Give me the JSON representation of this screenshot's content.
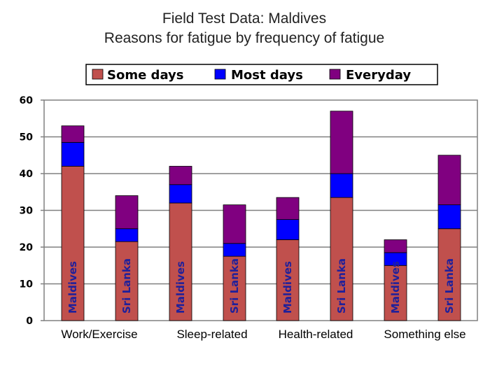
{
  "chart_data": {
    "type": "bar",
    "stacked": true,
    "title": "Field Test Data: Maldives",
    "subtitle": "Reasons for fatigue by frequency of fatigue",
    "xlabel": "",
    "ylabel": "",
    "ylim": [
      0,
      60
    ],
    "yticks": [
      0,
      10,
      20,
      30,
      40,
      50,
      60
    ],
    "grid": true,
    "legend_position": "top",
    "groups": [
      "Work/Exercise",
      "Sleep-related",
      "Health-related",
      "Something else"
    ],
    "categories": [
      "Maldives",
      "Sri Lanka",
      "Maldives",
      "Sri Lanka",
      "Maldives",
      "Sri Lanka",
      "Maldives",
      "Sri Lanka"
    ],
    "series": [
      {
        "name": "Some days",
        "color": "#c0504d",
        "values": [
          42,
          21.5,
          32,
          17.5,
          22,
          33.5,
          15,
          25
        ]
      },
      {
        "name": "Most days",
        "color": "#0000ff",
        "values": [
          6.5,
          3.5,
          5,
          3.5,
          5.5,
          6.5,
          3.5,
          6.5
        ]
      },
      {
        "name": "Everyday",
        "color": "#800080",
        "values": [
          4.5,
          9,
          5,
          10.5,
          6,
          17,
          3.5,
          13.5
        ]
      }
    ]
  },
  "colors": {
    "accent_border": "#000000",
    "legend_bg": "#ffffff"
  }
}
